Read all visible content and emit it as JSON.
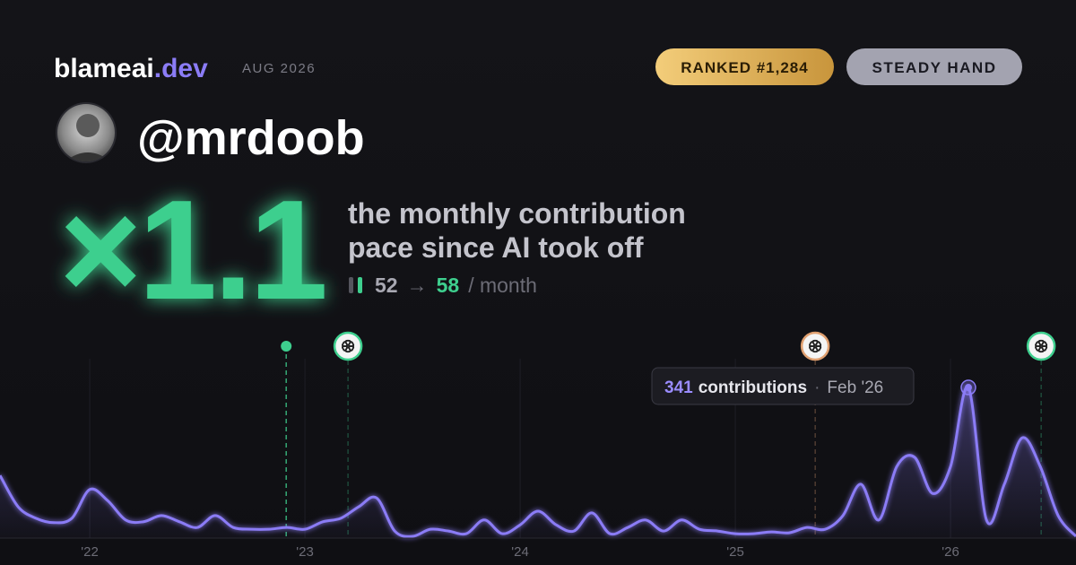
{
  "header": {
    "brand": "blameai",
    "brand_suffix": ".dev",
    "period": "AUG 2026",
    "rank_badge": "RANKED #1,284",
    "style_badge": "STEADY HAND",
    "username": "@mrdoob"
  },
  "headline": {
    "multiplier": "×1.1",
    "description_line_1": "the monthly contribution",
    "description_line_2": "pace since AI took off",
    "before": 52,
    "arrow": "→",
    "after": 58,
    "unit": "/ month"
  },
  "chart_data": {
    "type": "area",
    "color": "#8b7cf6",
    "x": [
      2021.583,
      2021.667,
      2021.75,
      2021.833,
      2021.917,
      2022.0,
      2022.083,
      2022.167,
      2022.25,
      2022.333,
      2022.417,
      2022.5,
      2022.583,
      2022.667,
      2022.75,
      2022.833,
      2022.917,
      2023.0,
      2023.083,
      2023.167,
      2023.25,
      2023.333,
      2023.417,
      2023.5,
      2023.583,
      2023.667,
      2023.75,
      2023.833,
      2023.917,
      2024.0,
      2024.083,
      2024.167,
      2024.25,
      2024.333,
      2024.417,
      2024.5,
      2024.583,
      2024.667,
      2024.75,
      2024.833,
      2024.917,
      2025.0,
      2025.083,
      2025.167,
      2025.25,
      2025.333,
      2025.417,
      2025.5,
      2025.583,
      2025.667,
      2025.75,
      2025.833,
      2025.917,
      2026.0,
      2026.083,
      2026.167,
      2026.25,
      2026.333,
      2026.417,
      2026.5,
      2026.583
    ],
    "values": [
      142,
      71,
      45,
      35,
      45,
      110,
      85,
      41,
      37,
      51,
      37,
      24,
      51,
      24,
      20,
      20,
      24,
      20,
      37,
      45,
      71,
      91,
      16,
      4,
      20,
      16,
      10,
      41,
      10,
      30,
      61,
      30,
      16,
      57,
      10,
      24,
      41,
      16,
      41,
      20,
      16,
      10,
      10,
      14,
      12,
      24,
      20,
      51,
      122,
      41,
      162,
      183,
      101,
      162,
      341,
      41,
      122,
      227,
      162,
      51,
      4
    ],
    "xlim": [
      2021.583,
      2026.583
    ],
    "ylim": [
      0,
      400
    ],
    "xticks": [
      {
        "value": 2022,
        "label": "'22"
      },
      {
        "value": 2023,
        "label": "'23"
      },
      {
        "value": 2024,
        "label": "'24"
      },
      {
        "value": 2025,
        "label": "'25"
      },
      {
        "value": 2026,
        "label": "'26"
      }
    ],
    "grid": true,
    "events": [
      {
        "x": 2022.913,
        "color": "#3ecf8e"
      },
      {
        "x": 2023.2,
        "color": "#3ecf8e"
      },
      {
        "x": 2025.371,
        "color": "#e0a070"
      },
      {
        "x": 2026.421,
        "color": "#3ecf8e"
      }
    ],
    "tooltip": {
      "label": "contributions",
      "date": "Feb '26"
    }
  }
}
